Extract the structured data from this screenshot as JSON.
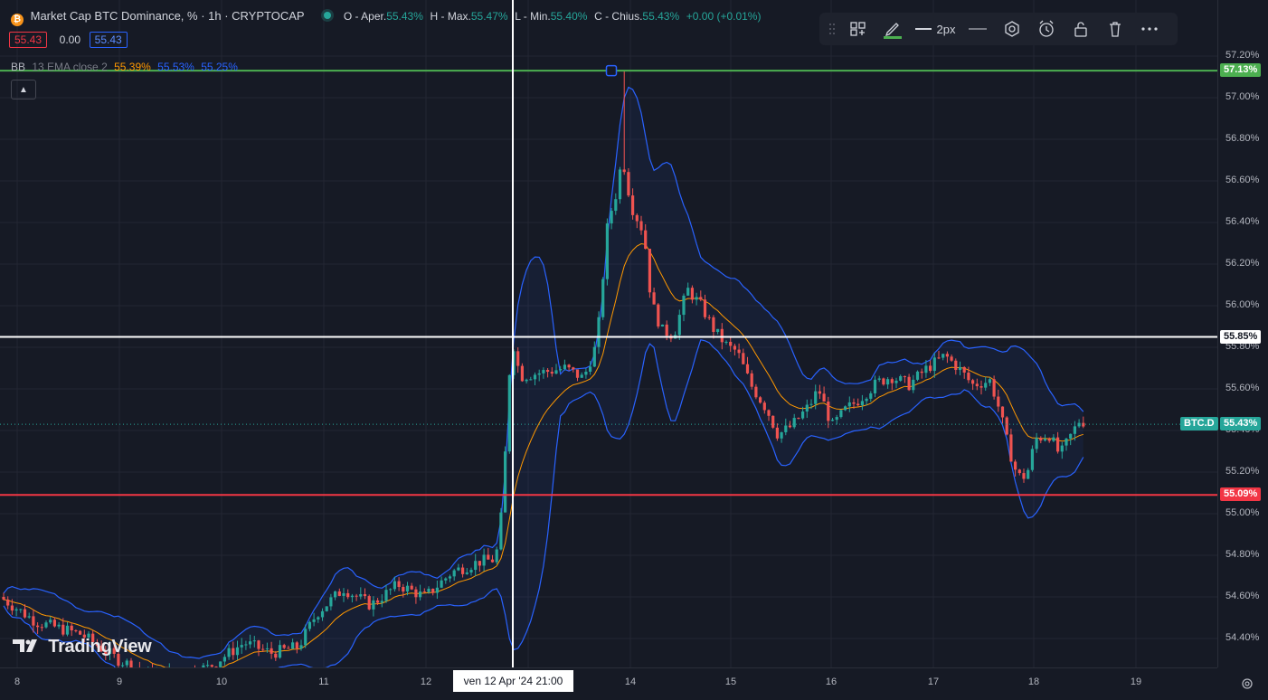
{
  "header": {
    "title": "Market Cap BTC Dominance, % · 1h · CRYPTOCAP",
    "ohlc": [
      {
        "label": "O - Aper.",
        "value": "55.43%"
      },
      {
        "label": "H - Max.",
        "value": "55.47%"
      },
      {
        "label": "L - Min.",
        "value": "55.40%"
      },
      {
        "label": "C - Chius.",
        "value": "55.43%"
      }
    ],
    "change": "+0.00 (+0.01%)",
    "sell_price": "55.43",
    "spread": "0.00",
    "buy_price": "55.43"
  },
  "indicator": {
    "name": "BB",
    "params": "13 EMA close 2",
    "basis": "55.39%",
    "upper": "55.53%",
    "lower": "55.25%"
  },
  "toolbar": {
    "line_width_label": "2px"
  },
  "scale_mode": "%",
  "watermark": "TradingView",
  "crosshair_date": "ven 12 Apr '24   21:00",
  "price_axis": {
    "ticks": [
      "57.20%",
      "57.00%",
      "56.80%",
      "56.60%",
      "56.40%",
      "56.20%",
      "56.00%",
      "55.80%",
      "55.60%",
      "55.40%",
      "55.20%",
      "55.00%",
      "54.80%",
      "54.60%",
      "54.40%"
    ],
    "tag_upper": "57.13%",
    "tag_crosshair": "55.85%",
    "tag_symbol": "BTC.D",
    "tag_last": "55.43%",
    "tag_lower": "55.09%"
  },
  "time_axis": {
    "ticks": [
      "8",
      "9",
      "10",
      "11",
      "12",
      "13",
      "14",
      "15",
      "16",
      "17",
      "18",
      "19"
    ]
  },
  "colors": {
    "up": "#26a69a",
    "down": "#ef5350",
    "bb_band": "#2962ff",
    "bb_basis": "#ff9800",
    "line_upper": "#4caf50",
    "line_lower": "#f23645",
    "crosshair": "#ffffff"
  },
  "chart_data": {
    "type": "candlestick",
    "symbol": "BTC.D",
    "ylim": [
      54.25,
      57.33
    ],
    "horizontal_lines": [
      57.13,
      55.85,
      55.09
    ],
    "last_price": 55.43
  }
}
